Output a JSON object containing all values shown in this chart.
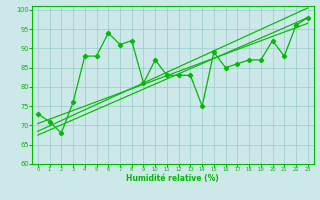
{
  "x_data": [
    0,
    1,
    2,
    3,
    4,
    5,
    6,
    7,
    8,
    9,
    10,
    11,
    12,
    13,
    14,
    15,
    16,
    17,
    18,
    19,
    20,
    21,
    22,
    23
  ],
  "y_main": [
    73,
    71,
    68,
    76,
    88,
    88,
    94,
    91,
    92,
    81,
    87,
    83,
    83,
    83,
    75,
    89,
    85,
    86,
    87,
    87,
    92,
    88,
    96,
    98
  ],
  "background_color": "#cce8e8",
  "grid_color": "#99cccc",
  "line_color": "#00bb00",
  "xlabel": "Humidité relative (%)",
  "xlim": [
    -0.5,
    23.5
  ],
  "ylim": [
    60,
    101
  ],
  "yticks": [
    60,
    65,
    70,
    75,
    80,
    85,
    90,
    95,
    100
  ],
  "xticks": [
    0,
    1,
    2,
    3,
    4,
    5,
    6,
    7,
    8,
    9,
    10,
    11,
    12,
    13,
    14,
    15,
    16,
    17,
    18,
    19,
    20,
    21,
    22,
    23
  ],
  "trend1": [
    67.5,
    98.0
  ],
  "trend2": [
    70.5,
    96.5
  ],
  "trend3": [
    68.5,
    100.5
  ]
}
